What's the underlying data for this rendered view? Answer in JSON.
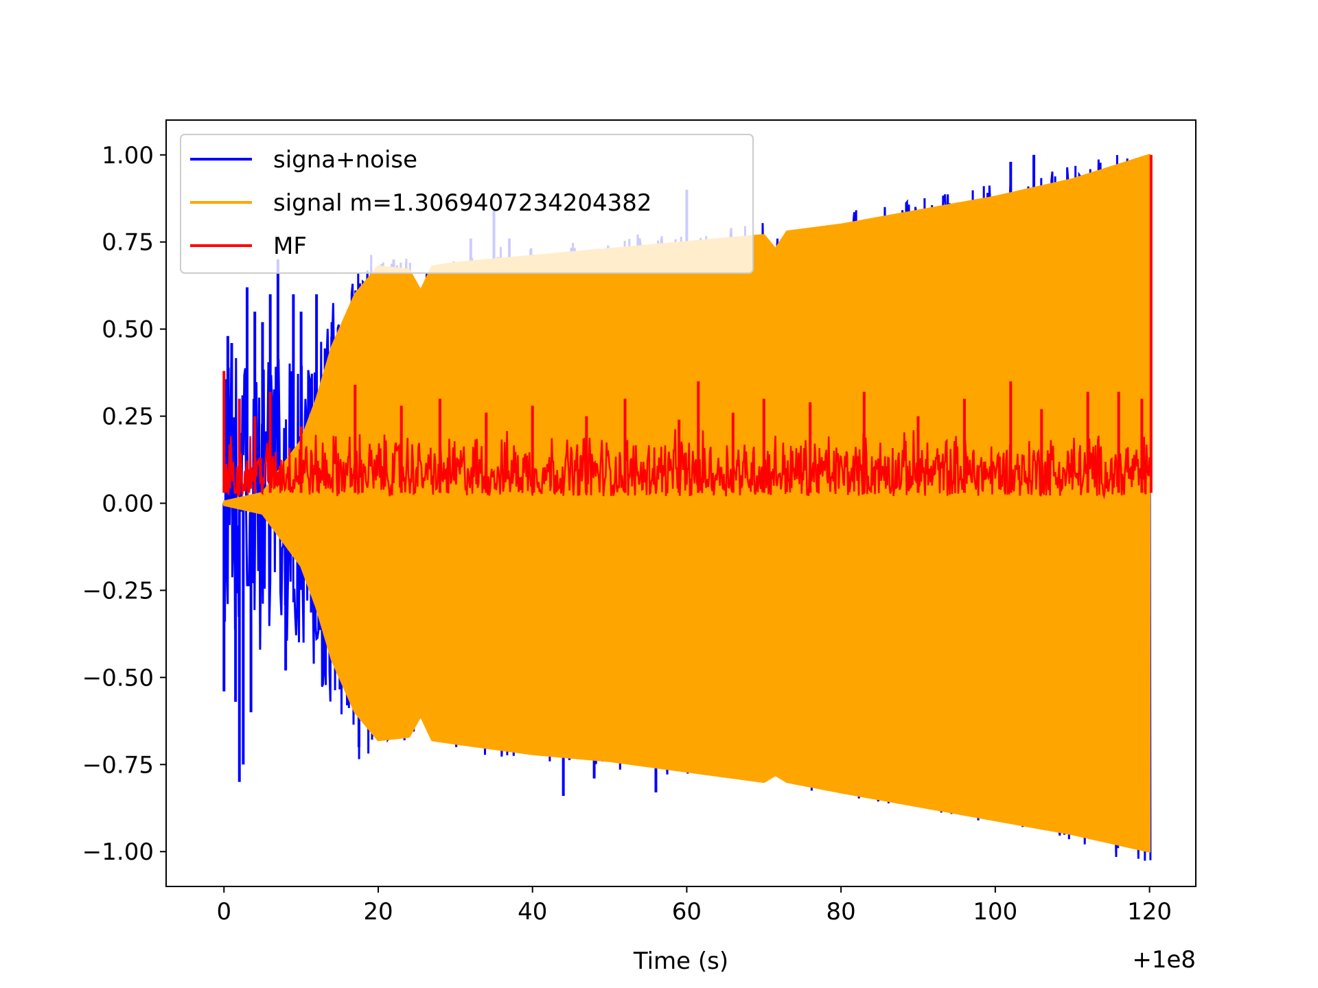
{
  "chart_data": {
    "type": "line",
    "title": "",
    "xlabel": "Time (s)",
    "ylabel": "",
    "x_offset_label": "+1e8",
    "xlim": [
      -7.5,
      126
    ],
    "ylim": [
      -1.1,
      1.1
    ],
    "x_ticks": [
      0,
      20,
      40,
      60,
      80,
      100,
      120
    ],
    "y_ticks": [
      1.0,
      0.75,
      0.5,
      0.25,
      0.0,
      -0.25,
      -0.5,
      -0.75,
      -1.0
    ],
    "x_tick_labels": [
      "0",
      "20",
      "40",
      "60",
      "80",
      "100",
      "120"
    ],
    "y_tick_labels": [
      "1.00",
      "0.75",
      "0.50",
      "0.25",
      "0.00",
      "−0.25",
      "−0.50",
      "−0.75",
      "−1.00"
    ],
    "grid": false,
    "legend_position": "top-left",
    "series": [
      {
        "name": "signa+noise",
        "color": "#0000ff",
        "x": [
          0,
          0.5,
          1,
          1.5,
          2,
          2.5,
          3,
          3.5,
          4,
          5,
          6,
          7,
          8,
          9,
          10,
          12,
          14,
          16,
          17.5,
          20,
          22,
          25,
          28,
          32,
          35,
          37,
          44,
          48,
          56,
          60,
          63,
          102,
          105
        ],
        "values": [
          -0.54,
          0.48,
          0.46,
          -0.57,
          -0.8,
          -0.75,
          0.62,
          -0.6,
          0.55,
          0.52,
          0.6,
          0.7,
          -0.48,
          0.6,
          0.55,
          0.6,
          0.52,
          -0.58,
          -0.7,
          0.65,
          0.7,
          0.62,
          0.68,
          0.76,
          0.84,
          0.76,
          -0.84,
          -0.79,
          -0.83,
          0.9,
          -0.77,
          0.98,
          1.0
        ]
      },
      {
        "name": "signal m=1.3069407234204382",
        "color": "#ffa500",
        "envelope_x": [
          0,
          5,
          10,
          12,
          14,
          17,
          20,
          24,
          25.5,
          27,
          30,
          40,
          50,
          60,
          70,
          71.5,
          73,
          80,
          90,
          100,
          110,
          120
        ],
        "envelope_upper": [
          0.005,
          0.03,
          0.18,
          0.3,
          0.45,
          0.6,
          0.68,
          0.67,
          0.61,
          0.68,
          0.69,
          0.71,
          0.73,
          0.75,
          0.77,
          0.73,
          0.78,
          0.8,
          0.84,
          0.88,
          0.93,
          1.0
        ],
        "envelope_lower": [
          -0.005,
          -0.03,
          -0.18,
          -0.3,
          -0.45,
          -0.6,
          -0.68,
          -0.67,
          -0.61,
          -0.68,
          -0.69,
          -0.72,
          -0.74,
          -0.77,
          -0.8,
          -0.78,
          -0.8,
          -0.83,
          -0.87,
          -0.91,
          -0.95,
          -1.0
        ]
      },
      {
        "name": "MF",
        "color": "#ff0000",
        "band_lower": 0.0,
        "band_upper_typical": 0.25,
        "x": [
          0,
          0.3,
          2,
          4,
          6,
          10,
          17,
          23,
          28,
          34,
          40,
          47,
          52,
          59,
          61.5,
          66,
          70,
          76,
          83,
          90,
          96,
          102,
          106,
          112,
          116,
          119,
          120.2
        ],
        "values": [
          0.38,
          0.1,
          0.3,
          0.25,
          0.32,
          0.22,
          0.34,
          0.28,
          0.3,
          0.26,
          0.28,
          0.25,
          0.3,
          0.24,
          0.35,
          0.26,
          0.3,
          0.29,
          0.32,
          0.25,
          0.3,
          0.35,
          0.27,
          0.32,
          0.32,
          0.3,
          1.0
        ]
      }
    ]
  }
}
